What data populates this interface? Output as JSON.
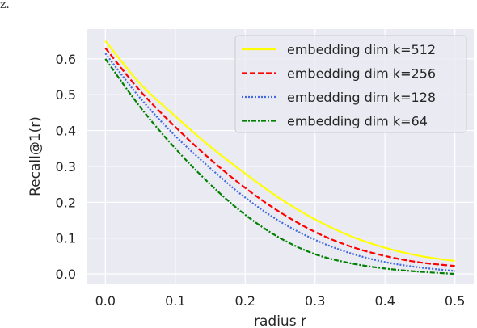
{
  "corner_text": "z.",
  "chart_data": {
    "type": "line",
    "title": "",
    "xlabel": "radius r",
    "ylabel": "Recall@1(r)",
    "xlim": [
      -0.027,
      0.527
    ],
    "ylim": [
      -0.027,
      0.683
    ],
    "xticks": [
      0.0,
      0.1,
      0.2,
      0.3,
      0.4,
      0.5
    ],
    "xtick_labels": [
      "0.0",
      "0.1",
      "0.2",
      "0.3",
      "0.4",
      "0.5"
    ],
    "yticks": [
      0.0,
      0.1,
      0.2,
      0.3,
      0.4,
      0.5,
      0.6
    ],
    "ytick_labels": [
      "0.0",
      "0.1",
      "0.2",
      "0.3",
      "0.4",
      "0.5",
      "0.6"
    ],
    "grid": true,
    "background": "#eaeaf2",
    "legend_position": "top-right",
    "x": [
      0.0,
      0.05,
      0.1,
      0.15,
      0.2,
      0.25,
      0.3,
      0.35,
      0.4,
      0.45,
      0.5
    ],
    "series": [
      {
        "name": "embedding dim k=512",
        "color": "#ffff00",
        "dash": "solid",
        "values": [
          0.65,
          0.53,
          0.44,
          0.355,
          0.28,
          0.21,
          0.152,
          0.106,
          0.073,
          0.05,
          0.036
        ]
      },
      {
        "name": "embedding dim k=256",
        "color": "#ff0000",
        "dash": "dashed",
        "values": [
          0.63,
          0.51,
          0.41,
          0.32,
          0.24,
          0.172,
          0.117,
          0.077,
          0.05,
          0.032,
          0.022
        ]
      },
      {
        "name": "embedding dim k=128",
        "color": "#4169e1",
        "dash": "dotted",
        "values": [
          0.615,
          0.49,
          0.385,
          0.295,
          0.213,
          0.146,
          0.095,
          0.058,
          0.033,
          0.018,
          0.008
        ]
      },
      {
        "name": "embedding dim k=64",
        "color": "#008000",
        "dash": "dashdot",
        "values": [
          0.6,
          0.465,
          0.35,
          0.25,
          0.165,
          0.1,
          0.055,
          0.03,
          0.015,
          0.006,
          0.0
        ]
      }
    ]
  }
}
